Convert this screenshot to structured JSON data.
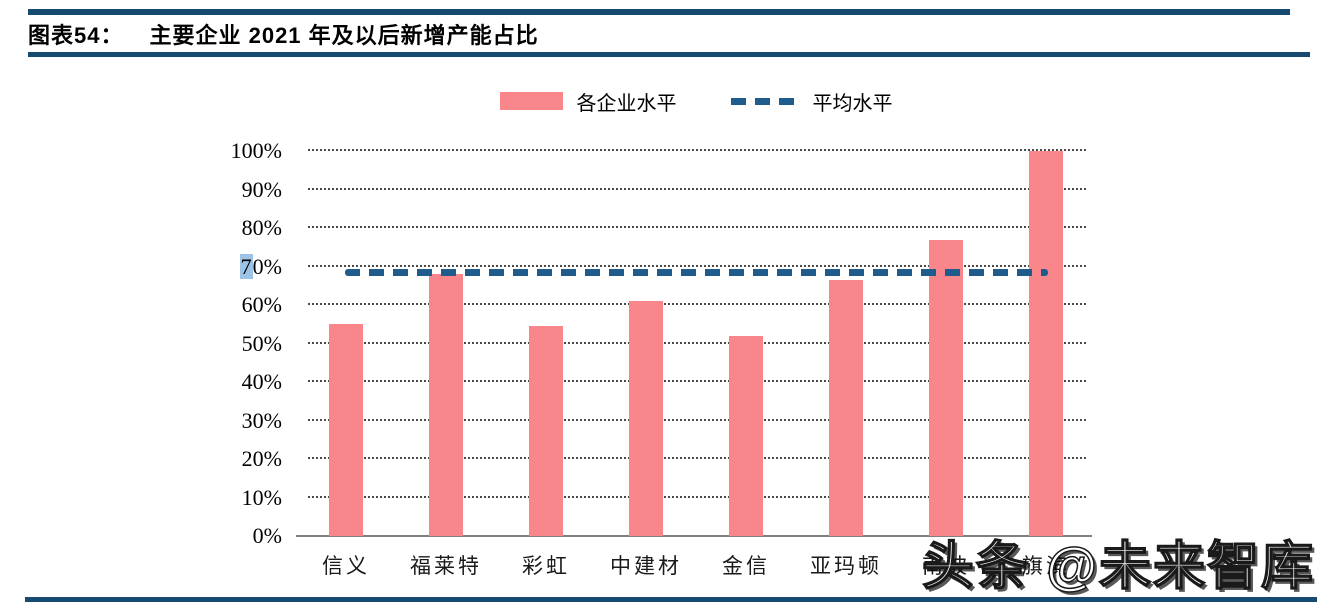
{
  "header": {
    "figure_tag": "图表54：",
    "title": "主要企业 2021 年及以后新增产能占比"
  },
  "legend": {
    "series_label": "各企业水平",
    "average_label": "平均水平"
  },
  "chart_data": {
    "type": "bar",
    "title": "主要企业 2021 年及以后新增产能占比",
    "categories": [
      "信义",
      "福莱特",
      "彩虹",
      "中建材",
      "金信",
      "亚玛顿",
      "南玻",
      "旗滨"
    ],
    "series": [
      {
        "name": "各企业水平",
        "values": [
          55,
          68,
          54.5,
          61,
          52,
          66.5,
          77,
          100
        ]
      }
    ],
    "average_line": {
      "name": "平均水平",
      "value": 68.5
    },
    "ylim": [
      0,
      100
    ],
    "ytick_step": 10,
    "ytick_labels": [
      "0%",
      "10%",
      "20%",
      "30%",
      "40%",
      "50%",
      "60%",
      "70%",
      "80%",
      "90%",
      "100%"
    ],
    "grid": "horizontal-dotted",
    "legend_position": "top",
    "xlabel": "",
    "ylabel": ""
  },
  "colors": {
    "bar": "#F8868B",
    "average_line": "#1F5C8C",
    "rule_navy": "#164A70",
    "tick_highlight": "#9DC3E6"
  },
  "artifacts": {
    "highlighted_tick": "70%"
  },
  "watermark": {
    "text": "头条 @未来智库"
  }
}
